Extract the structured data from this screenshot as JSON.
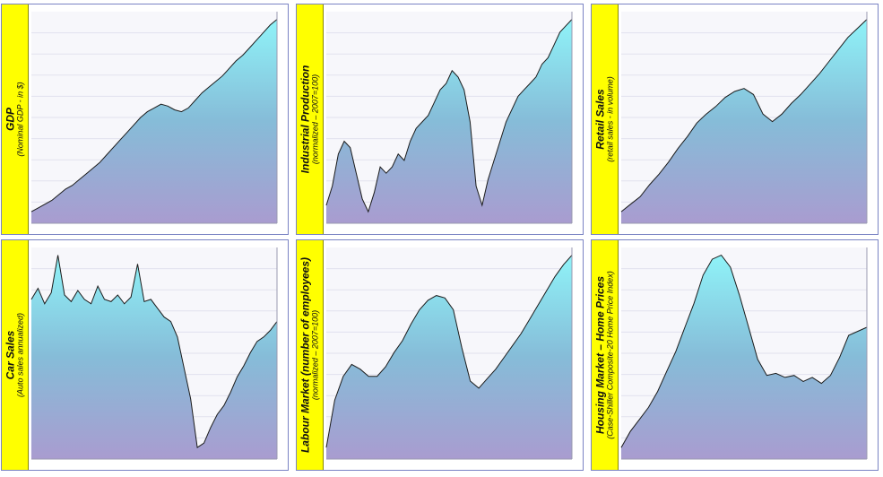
{
  "chart_data": [
    {
      "type": "area",
      "title": "GDP",
      "subtitle": "(Nominal GDP - in $)",
      "y": [
        8.9,
        9.1,
        9.3,
        9.5,
        9.8,
        10.1,
        10.3,
        10.6,
        10.9,
        11.2,
        11.5,
        11.9,
        12.3,
        12.7,
        13.1,
        13.5,
        13.9,
        14.2,
        14.4,
        14.6,
        14.5,
        14.3,
        14.2,
        14.4,
        14.8,
        15.2,
        15.5,
        15.8,
        16.1,
        16.5,
        16.9,
        17.2,
        17.6,
        18.0,
        18.4,
        18.8,
        19.1
      ]
    },
    {
      "type": "area",
      "title": "Industrial Production",
      "subtitle": "(normalized – 2007=100)",
      "y": [
        85,
        88,
        93,
        95,
        94,
        90,
        86,
        84,
        87,
        91,
        90,
        91,
        93,
        92,
        95,
        97,
        98,
        99,
        101,
        103,
        104,
        106,
        105,
        103,
        98,
        88,
        85,
        89,
        92,
        95,
        98,
        100,
        102,
        103,
        104,
        105,
        107,
        108,
        110,
        112,
        113,
        114
      ]
    },
    {
      "type": "area",
      "title": "Retail Sales",
      "subtitle": "(retail sales - in volume)",
      "y": [
        270,
        275,
        280,
        288,
        295,
        303,
        312,
        320,
        329,
        335,
        340,
        346,
        350,
        352,
        348,
        335,
        330,
        335,
        342,
        348,
        355,
        362,
        370,
        378,
        386,
        392,
        398
      ]
    },
    {
      "type": "area",
      "title": "Car Sales",
      "subtitle": "(Auto sales annualized)",
      "y": [
        17.0,
        17.5,
        16.8,
        17.3,
        19.0,
        17.2,
        16.9,
        17.4,
        17.0,
        16.8,
        17.6,
        17.0,
        16.9,
        17.2,
        16.8,
        17.1,
        18.6,
        16.9,
        17.0,
        16.6,
        16.2,
        16.0,
        15.3,
        13.9,
        12.5,
        10.3,
        10.5,
        11.2,
        11.8,
        12.2,
        12.8,
        13.5,
        14.0,
        14.6,
        15.1,
        15.3,
        15.6,
        16.0
      ]
    },
    {
      "type": "area",
      "title": "Labour Market",
      "subtitle": "(number of employees)",
      "subtitle2": "(normalized – 2007=100)",
      "y": [
        94,
        96,
        97,
        97.5,
        97.3,
        97,
        97,
        97.4,
        98,
        98.5,
        99.2,
        99.8,
        100.2,
        100.4,
        100.3,
        99.8,
        98.2,
        96.8,
        96.5,
        96.9,
        97.3,
        97.8,
        98.3,
        98.8,
        99.4,
        100,
        100.6,
        101.2,
        101.7,
        102.1
      ]
    },
    {
      "type": "area",
      "title": "Housing Market – Home Prices",
      "subtitle": "(Case-Shiller Composite-20 Home Price Index)",
      "y": [
        110,
        118,
        124,
        130,
        138,
        148,
        158,
        170,
        182,
        196,
        204,
        206,
        200,
        186,
        170,
        154,
        146,
        147,
        145,
        146,
        143,
        145,
        142,
        146,
        155,
        166,
        168,
        170
      ]
    }
  ]
}
